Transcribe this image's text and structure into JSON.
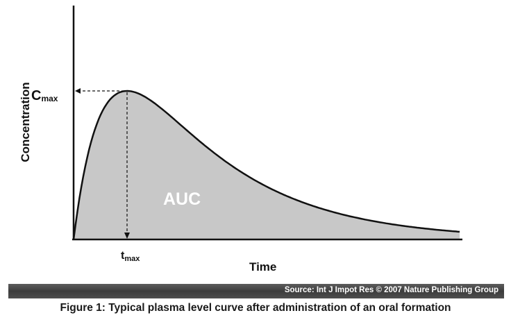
{
  "chart_data": {
    "type": "area",
    "title": "",
    "xlabel": "Time",
    "ylabel": "Concentration",
    "annotations": {
      "area_label": "AUC",
      "peak_y_label": {
        "main": "C",
        "sub": "max"
      },
      "peak_x_label": {
        "main": "t",
        "sub": "max"
      }
    },
    "axis_ticks": "none",
    "grid": false,
    "colors": {
      "fill": "#c8c8c8",
      "line": "#111111"
    }
  },
  "source_bar": {
    "text": "Source: Int J Impot Res © 2007 Nature Publishing Group"
  },
  "caption": "Figure 1: Typical plasma level curve after administration of an oral formation"
}
